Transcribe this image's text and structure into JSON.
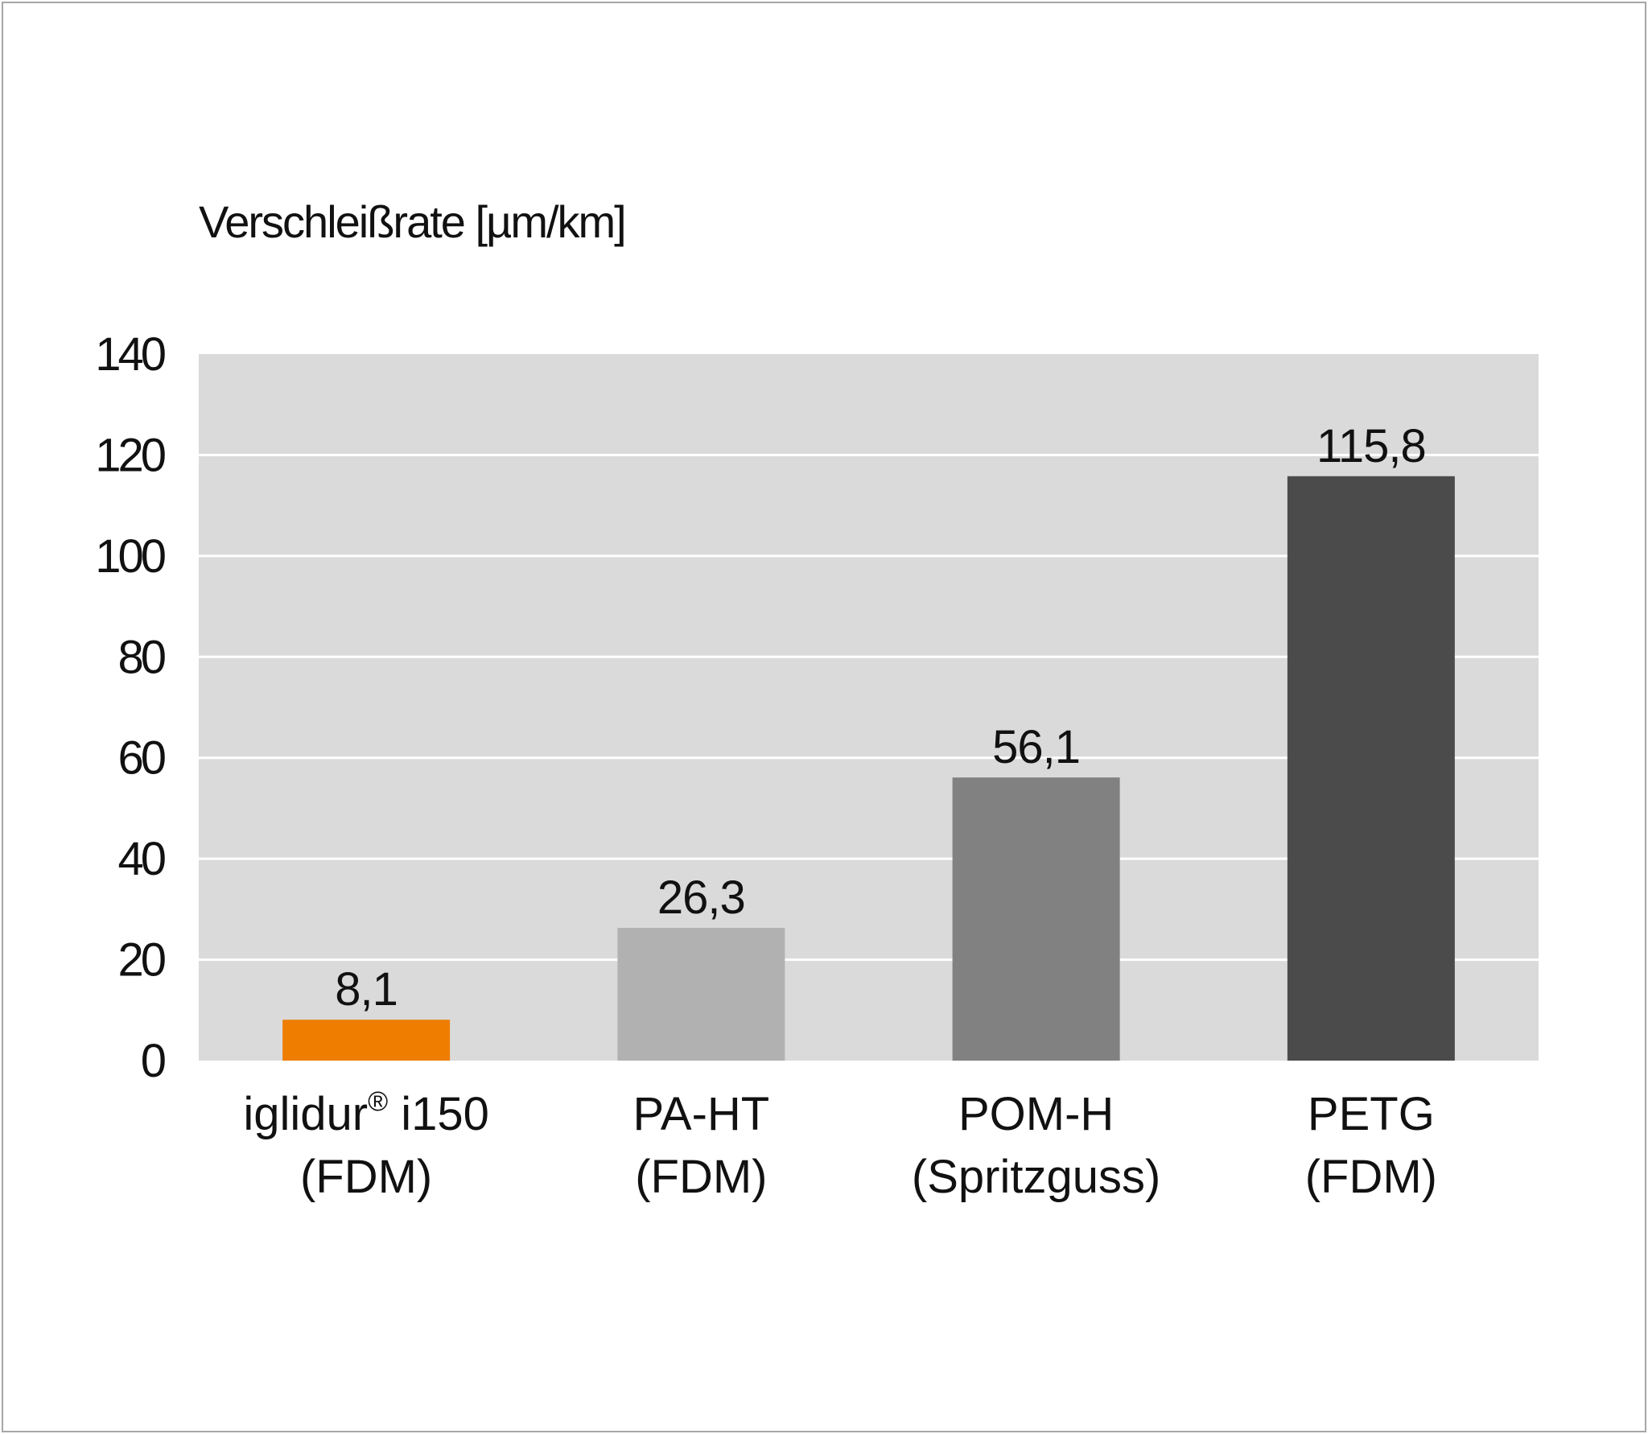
{
  "chart_data": {
    "type": "bar",
    "title": "",
    "ylabel": "Verschleißrate [µm/km]",
    "xlabel": "",
    "ylim": [
      0,
      140
    ],
    "yticks": [
      0,
      20,
      40,
      60,
      80,
      100,
      120,
      140
    ],
    "grid": true,
    "legend": "none",
    "background_color": "#dadada",
    "gridline_color": "#ffffff",
    "categories": [
      {
        "line1": "iglidur",
        "mark": "®",
        "line1_suffix": " i150",
        "line2": "(FDM)"
      },
      {
        "line1": "PA-HT",
        "mark": "",
        "line1_suffix": "",
        "line2": "(FDM)"
      },
      {
        "line1": "POM-H",
        "mark": "",
        "line1_suffix": "",
        "line2": "(Spritzguss)"
      },
      {
        "line1": "PETG",
        "mark": "",
        "line1_suffix": "",
        "line2": "(FDM)"
      }
    ],
    "values": [
      8.1,
      26.3,
      56.1,
      115.8
    ],
    "value_labels": [
      "8,1",
      "26,3",
      "56,1",
      "115,8"
    ],
    "colors": [
      "#ee7d00",
      "#b1b1b1",
      "#818181",
      "#4b4b4b"
    ]
  }
}
